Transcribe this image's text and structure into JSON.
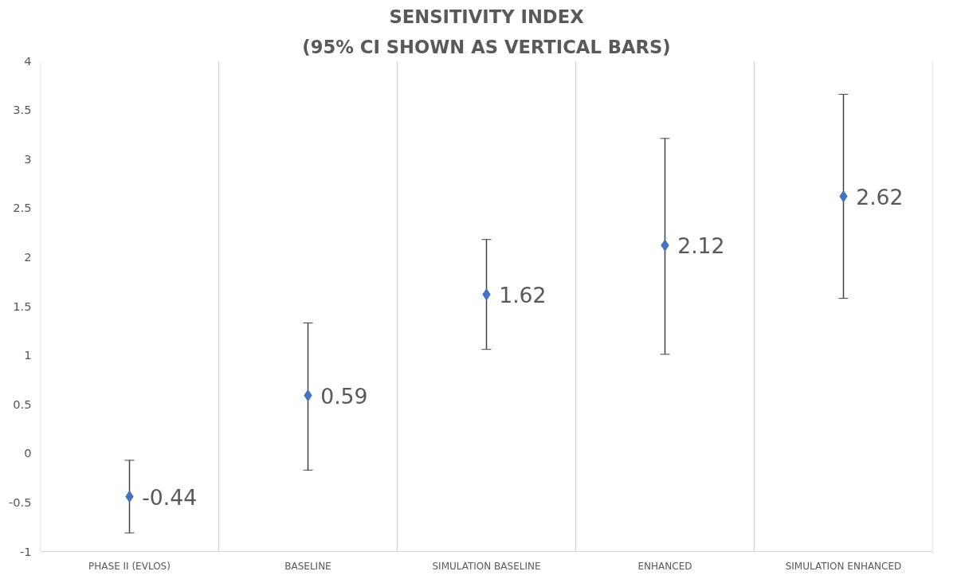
{
  "chart_data": {
    "type": "scatter",
    "title": "SENSITIVITY INDEX",
    "subtitle": "(95% CI SHOWN AS VERTICAL BARS)",
    "categories": [
      "PHASE II (EVLOS)",
      "BASELINE",
      "SIMULATION BASELINE",
      "ENHANCED",
      "SIMULATION ENHANCED"
    ],
    "series": [
      {
        "color": "#4472c4",
        "values": [
          -0.44,
          0.59,
          1.62,
          2.12,
          2.62
        ],
        "errors": [
          [
            -0.81,
            -0.07
          ],
          [
            -0.17,
            1.33
          ],
          [
            1.06,
            2.18
          ],
          [
            1.01,
            3.21
          ],
          [
            1.58,
            3.66
          ]
        ]
      }
    ],
    "ylim": [
      -1,
      4
    ],
    "yticks": [
      -1,
      -0.5,
      0,
      0.5,
      1,
      1.5,
      2,
      2.5,
      3,
      3.5,
      4
    ],
    "grid": "x",
    "marker": "diamond",
    "data_labels": true
  }
}
